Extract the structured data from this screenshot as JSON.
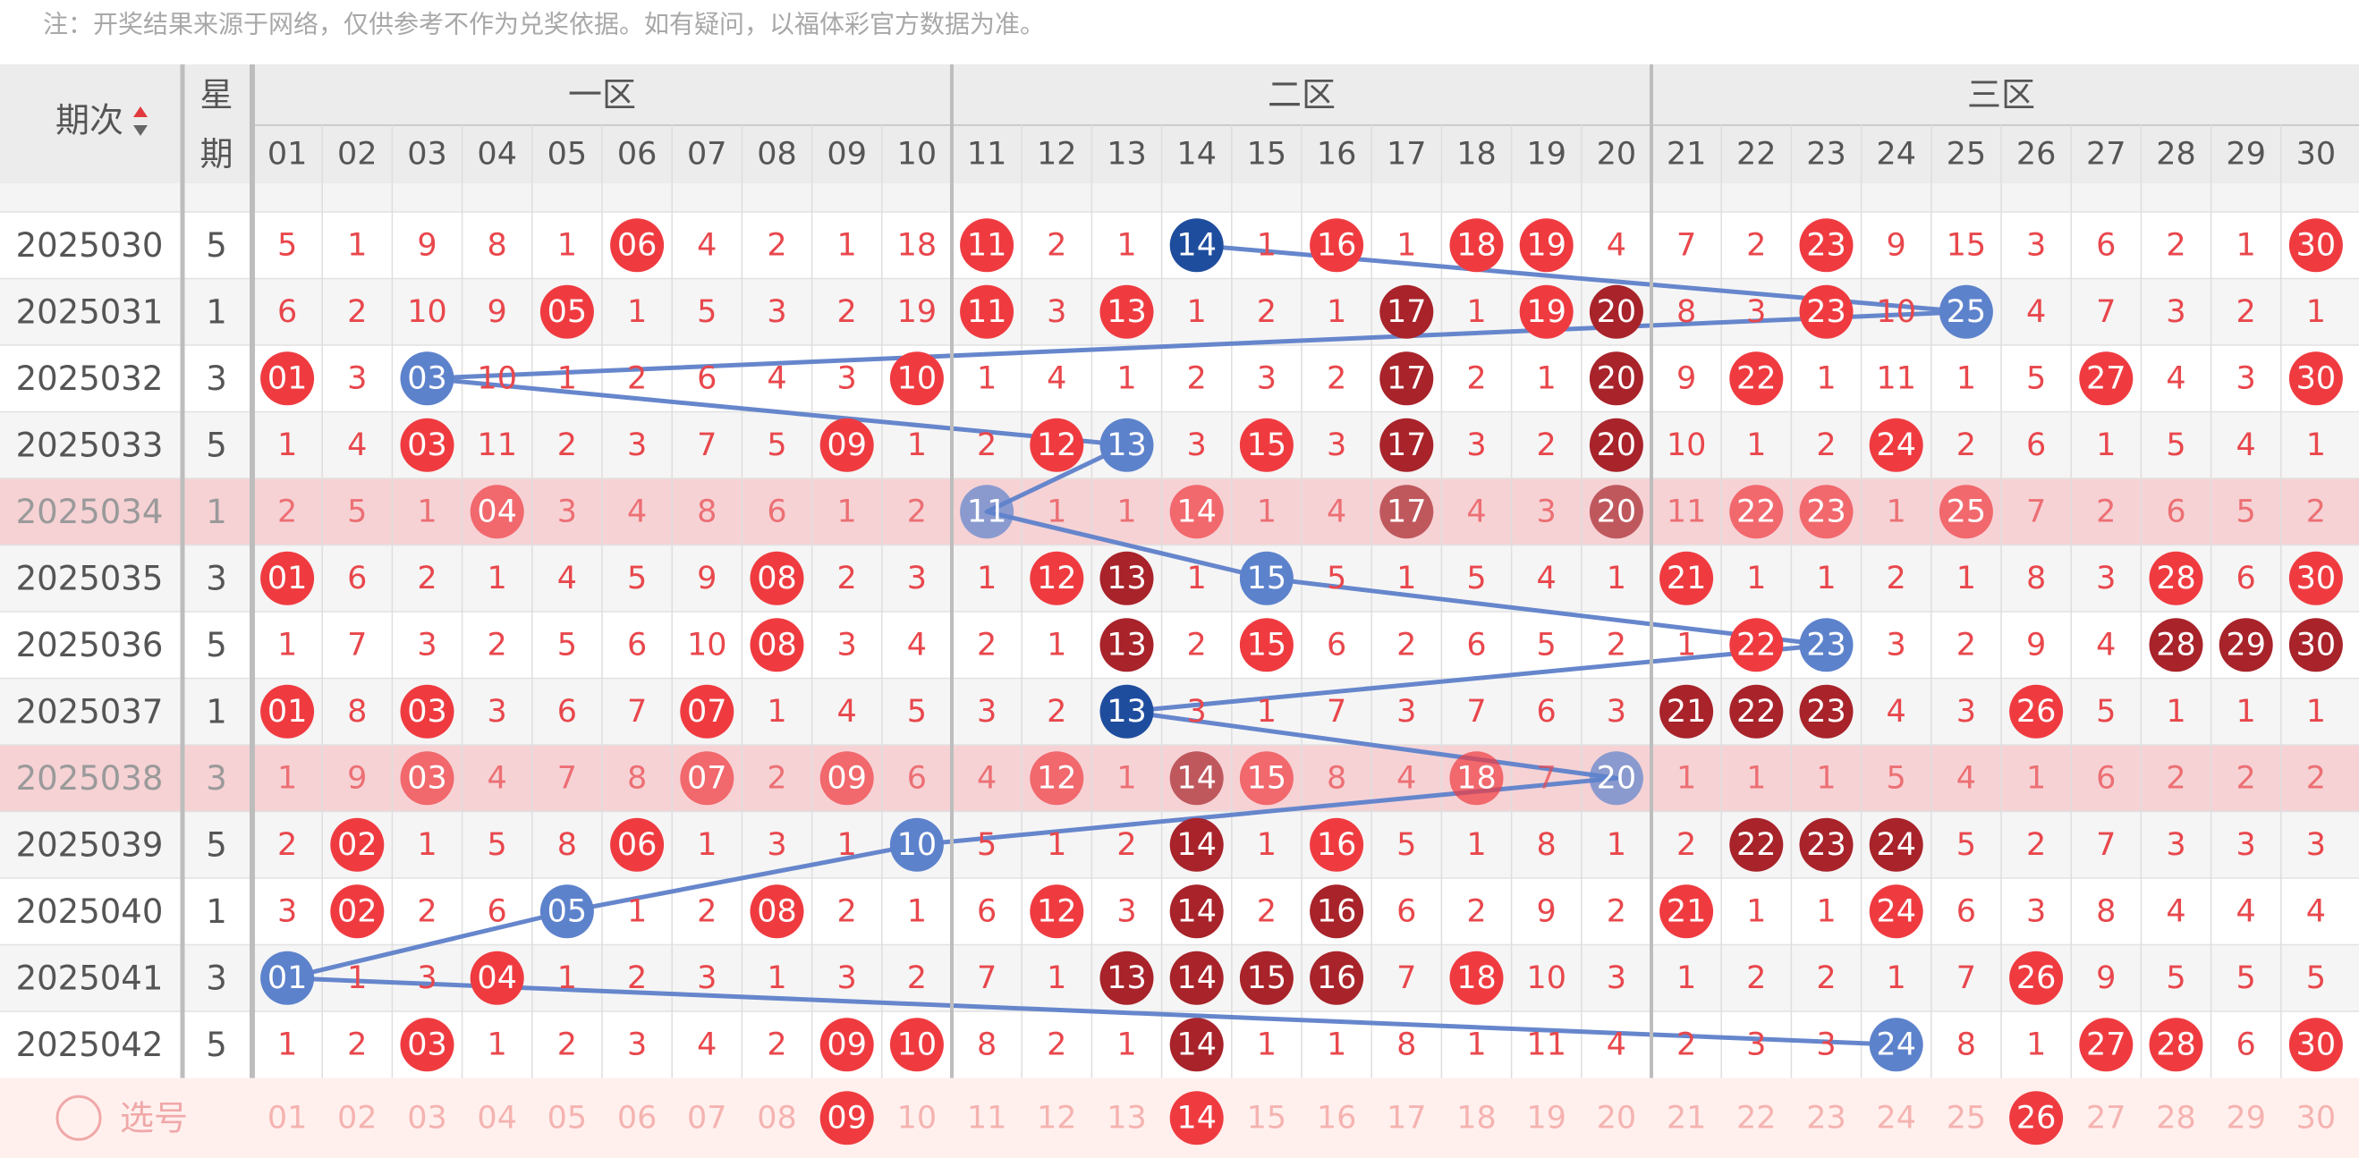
{
  "note": "注：开奖结果来源于网络，仅供参考不作为兑奖依据。如有疑问，以福体彩官方数据为准。",
  "header": {
    "period": "期次",
    "weekday_top": "星",
    "weekday_bottom": "期",
    "zones": [
      "一区",
      "二区",
      "三区"
    ],
    "columns": [
      "01",
      "02",
      "03",
      "04",
      "05",
      "06",
      "07",
      "08",
      "09",
      "10",
      "11",
      "12",
      "13",
      "14",
      "15",
      "16",
      "17",
      "18",
      "19",
      "20",
      "21",
      "22",
      "23",
      "24",
      "25",
      "26",
      "27",
      "28",
      "29",
      "30"
    ]
  },
  "colors": {
    "hit": "#ef3b40",
    "repeat": "#a8232a",
    "trend": "#5d82cc",
    "trend_repeat": "#1f4d9e",
    "line": "#6686cc",
    "miss_text": "#e8474c",
    "highlight": "#f6d2d5"
  },
  "rows": [
    {
      "period": "2025030",
      "weekday": "5",
      "cells": [
        "5",
        "1",
        "9",
        "8",
        "1",
        "06",
        "4",
        "2",
        "1",
        "18",
        "11",
        "2",
        "1",
        "14",
        "1",
        "16",
        "1",
        "18",
        "19",
        "4",
        "7",
        "2",
        "23",
        "9",
        "15",
        "3",
        "6",
        "2",
        "1",
        "30"
      ],
      "repeat": [
        13
      ],
      "trend": 13,
      "highlighted": false
    },
    {
      "period": "2025031",
      "weekday": "1",
      "cells": [
        "6",
        "2",
        "10",
        "9",
        "05",
        "1",
        "5",
        "3",
        "2",
        "19",
        "11",
        "3",
        "13",
        "1",
        "2",
        "1",
        "17",
        "1",
        "19",
        "20",
        "8",
        "3",
        "23",
        "10",
        "25",
        "4",
        "7",
        "3",
        "2",
        "1"
      ],
      "repeat": [
        16,
        19
      ],
      "trend": 24,
      "highlighted": false
    },
    {
      "period": "2025032",
      "weekday": "3",
      "cells": [
        "01",
        "3",
        "03",
        "10",
        "1",
        "2",
        "6",
        "4",
        "3",
        "10",
        "1",
        "4",
        "1",
        "2",
        "3",
        "2",
        "17",
        "2",
        "1",
        "20",
        "9",
        "22",
        "1",
        "11",
        "1",
        "5",
        "27",
        "4",
        "3",
        "30"
      ],
      "repeat": [
        16,
        19
      ],
      "trend": 2,
      "highlighted": false
    },
    {
      "period": "2025033",
      "weekday": "5",
      "cells": [
        "1",
        "4",
        "03",
        "11",
        "2",
        "3",
        "7",
        "5",
        "09",
        "1",
        "2",
        "12",
        "13",
        "3",
        "15",
        "3",
        "17",
        "3",
        "2",
        "20",
        "10",
        "1",
        "2",
        "24",
        "2",
        "6",
        "1",
        "5",
        "4",
        "1"
      ],
      "repeat": [
        16,
        19
      ],
      "trend": 12,
      "highlighted": false
    },
    {
      "period": "2025034",
      "weekday": "1",
      "cells": [
        "2",
        "5",
        "1",
        "04",
        "3",
        "4",
        "8",
        "6",
        "1",
        "2",
        "11",
        "1",
        "1",
        "14",
        "1",
        "4",
        "17",
        "4",
        "3",
        "20",
        "11",
        "22",
        "23",
        "1",
        "25",
        "7",
        "2",
        "6",
        "5",
        "2"
      ],
      "repeat": [
        16,
        19
      ],
      "trend": 10,
      "highlighted": true
    },
    {
      "period": "2025035",
      "weekday": "3",
      "cells": [
        "01",
        "6",
        "2",
        "1",
        "4",
        "5",
        "9",
        "08",
        "2",
        "3",
        "1",
        "12",
        "13",
        "1",
        "15",
        "5",
        "1",
        "5",
        "4",
        "1",
        "21",
        "1",
        "1",
        "2",
        "1",
        "8",
        "3",
        "28",
        "6",
        "30"
      ],
      "repeat": [
        12
      ],
      "trend": 14,
      "highlighted": false
    },
    {
      "period": "2025036",
      "weekday": "5",
      "cells": [
        "1",
        "7",
        "3",
        "2",
        "5",
        "6",
        "10",
        "08",
        "3",
        "4",
        "2",
        "1",
        "13",
        "2",
        "15",
        "6",
        "2",
        "6",
        "5",
        "2",
        "1",
        "22",
        "23",
        "3",
        "2",
        "9",
        "4",
        "28",
        "29",
        "30"
      ],
      "repeat": [
        12,
        27,
        28,
        29
      ],
      "trend": 22,
      "highlighted": false
    },
    {
      "period": "2025037",
      "weekday": "1",
      "cells": [
        "01",
        "8",
        "03",
        "3",
        "6",
        "7",
        "07",
        "1",
        "4",
        "5",
        "3",
        "2",
        "13",
        "3",
        "1",
        "7",
        "3",
        "7",
        "6",
        "3",
        "21",
        "22",
        "23",
        "4",
        "3",
        "26",
        "5",
        "1",
        "1",
        "1"
      ],
      "repeat": [
        12,
        20,
        21,
        22
      ],
      "trend": 12,
      "highlighted": false
    },
    {
      "period": "2025038",
      "weekday": "3",
      "cells": [
        "1",
        "9",
        "03",
        "4",
        "7",
        "8",
        "07",
        "2",
        "09",
        "6",
        "4",
        "12",
        "1",
        "14",
        "15",
        "8",
        "4",
        "18",
        "7",
        "20",
        "1",
        "1",
        "1",
        "5",
        "4",
        "1",
        "6",
        "2",
        "2",
        "2"
      ],
      "repeat": [
        13
      ],
      "trend": 19,
      "highlighted": true
    },
    {
      "period": "2025039",
      "weekday": "5",
      "cells": [
        "2",
        "02",
        "1",
        "5",
        "8",
        "06",
        "1",
        "3",
        "1",
        "10",
        "5",
        "1",
        "2",
        "14",
        "1",
        "16",
        "5",
        "1",
        "8",
        "1",
        "2",
        "22",
        "23",
        "24",
        "5",
        "2",
        "7",
        "3",
        "3",
        "3"
      ],
      "repeat": [
        13,
        21,
        22,
        23
      ],
      "trend": 9,
      "highlighted": false
    },
    {
      "period": "2025040",
      "weekday": "1",
      "cells": [
        "3",
        "02",
        "2",
        "6",
        "05",
        "1",
        "2",
        "08",
        "2",
        "1",
        "6",
        "12",
        "3",
        "14",
        "2",
        "16",
        "6",
        "2",
        "9",
        "2",
        "21",
        "1",
        "1",
        "24",
        "6",
        "3",
        "8",
        "4",
        "4",
        "4"
      ],
      "repeat": [
        13,
        15
      ],
      "trend": 4,
      "highlighted": false
    },
    {
      "period": "2025041",
      "weekday": "3",
      "cells": [
        "01",
        "1",
        "3",
        "04",
        "1",
        "2",
        "3",
        "1",
        "3",
        "2",
        "7",
        "1",
        "13",
        "14",
        "15",
        "16",
        "7",
        "18",
        "10",
        "3",
        "1",
        "2",
        "2",
        "1",
        "7",
        "26",
        "9",
        "5",
        "5",
        "5"
      ],
      "repeat": [
        12,
        13,
        14,
        15
      ],
      "trend": 0,
      "highlighted": false
    },
    {
      "period": "2025042",
      "weekday": "5",
      "cells": [
        "1",
        "2",
        "03",
        "1",
        "2",
        "3",
        "4",
        "2",
        "09",
        "10",
        "8",
        "2",
        "1",
        "14",
        "1",
        "1",
        "8",
        "1",
        "11",
        "4",
        "2",
        "3",
        "3",
        "24",
        "8",
        "1",
        "27",
        "28",
        "6",
        "30"
      ],
      "repeat": [
        13
      ],
      "trend": 23,
      "highlighted": false
    }
  ],
  "selector": {
    "label": "选号",
    "selected": [
      8,
      13,
      25
    ]
  }
}
